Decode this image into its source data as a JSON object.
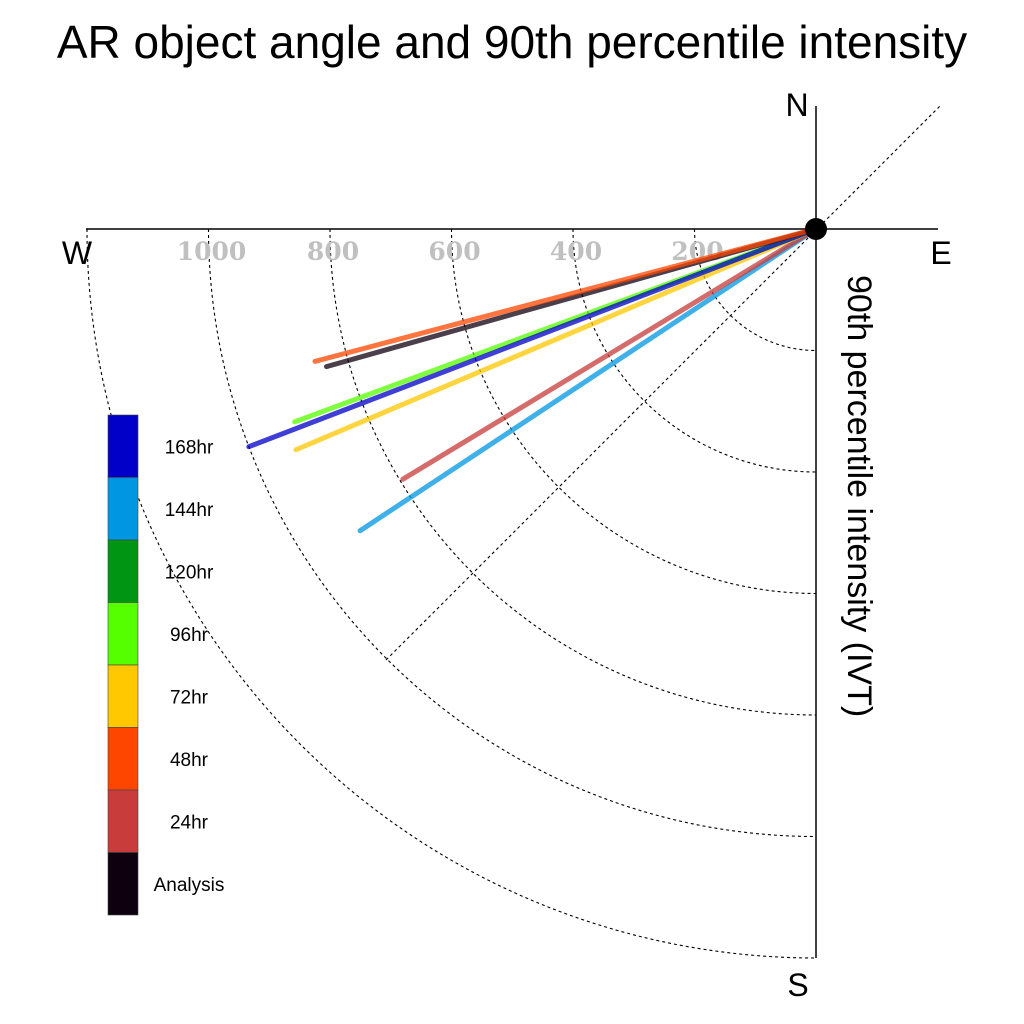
{
  "chart_data": {
    "type": "polar-vector",
    "title": "AR object angle and 90th percentile intensity",
    "ylabel": "90th percentile intensity (IVT)",
    "compass": {
      "north": "N",
      "south": "S",
      "east": "E",
      "west": "W"
    },
    "radial_ticks": [
      "200",
      "400",
      "600",
      "800",
      "1000"
    ],
    "radial_tick_values": [
      200,
      400,
      600,
      800,
      1000
    ],
    "rmax": 1200,
    "units_per_ring": 200,
    "series": [
      {
        "name": "168hr",
        "color": "#0000c8",
        "magnitude": 1000,
        "angle_deg_south_of_west": 21.0
      },
      {
        "name": "144hr",
        "color": "#0096e1",
        "magnitude": 900,
        "angle_deg_south_of_west": 33.5
      },
      {
        "name": "120hr",
        "color": "#009614",
        "magnitude": null,
        "angle_deg_south_of_west": null
      },
      {
        "name": "96hr",
        "color": "#55ff00",
        "magnitude": 915,
        "angle_deg_south_of_west": 20.3
      },
      {
        "name": "72hr",
        "color": "#ffc800",
        "magnitude": 930,
        "angle_deg_south_of_west": 23.0
      },
      {
        "name": "48hr",
        "color": "#ff4600",
        "magnitude": 853,
        "angle_deg_south_of_west": 14.8
      },
      {
        "name": "24hr",
        "color": "#c83c3c",
        "magnitude": 795,
        "angle_deg_south_of_west": 31.2
      },
      {
        "name": "Analysis",
        "color": "#0f000f",
        "magnitude": 837,
        "angle_deg_south_of_west": 15.7
      }
    ]
  }
}
